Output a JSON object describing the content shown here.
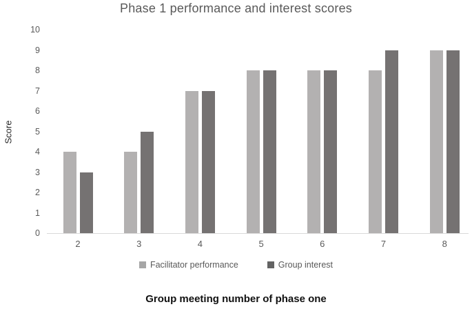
{
  "chart_data": {
    "type": "bar",
    "title": "Phase 1 performance and interest scores",
    "xlabel": "Group meeting number of phase one",
    "ylabel": "Score",
    "categories": [
      "2",
      "3",
      "4",
      "5",
      "6",
      "7",
      "8"
    ],
    "series": [
      {
        "name": "Facilitator performance",
        "bar_color": "#b3b1b1",
        "legend_color": "#a6a6a6",
        "values": [
          4,
          4,
          7,
          8,
          8,
          8,
          9
        ]
      },
      {
        "name": "Group interest",
        "bar_color": "#757272",
        "legend_color": "#636363",
        "values": [
          3,
          5,
          7,
          8,
          8,
          9,
          9
        ]
      }
    ],
    "ylim": [
      0,
      10
    ],
    "ytick_step": 1,
    "grid": false,
    "legend_position": "bottom"
  },
  "colors": {
    "title_text": "#595959",
    "tick_text": "#595959",
    "axis_line": "#d9d9d9",
    "xlabel_text": "#111111"
  }
}
